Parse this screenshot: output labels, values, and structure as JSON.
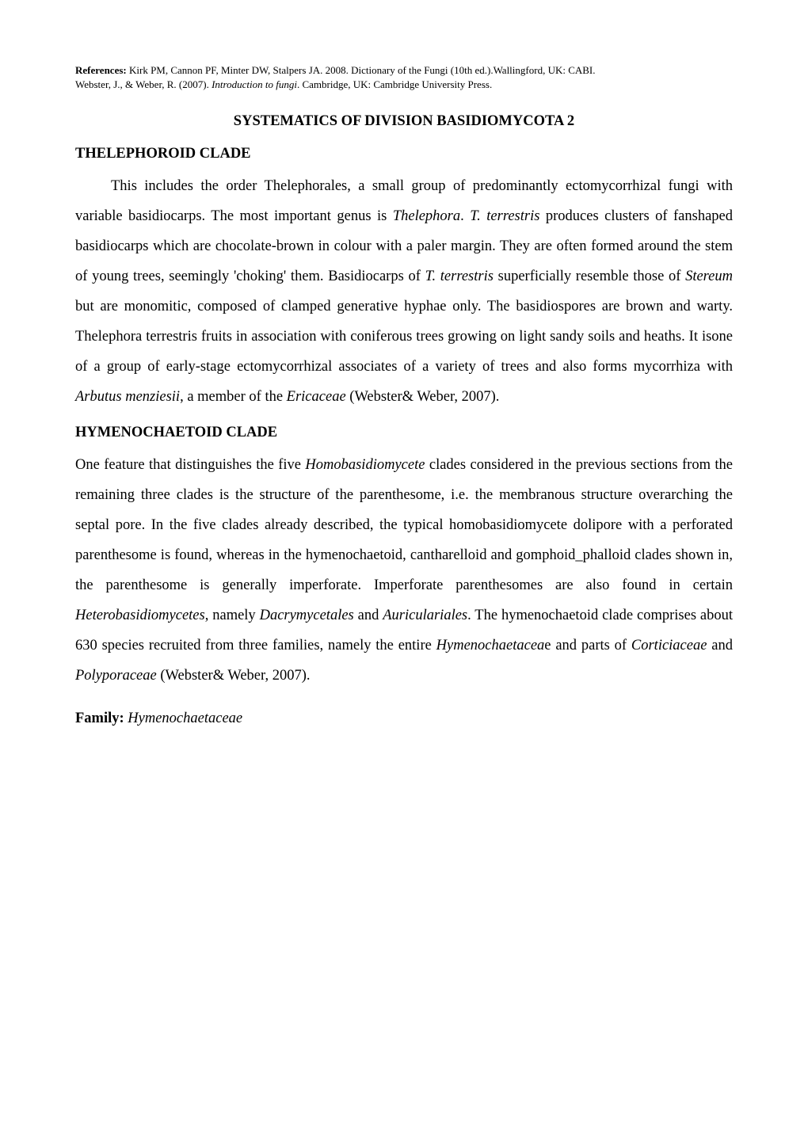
{
  "references": {
    "line1_prefix": "References: ",
    "line1_text": "Kirk PM, Cannon PF, Minter DW, Stalpers JA. 2008. Dictionary of the Fungi (10th ed.).Wallingford, UK: CABI.",
    "line2_prefix": "Webster, J., & Weber, R. (2007). ",
    "line2_italic": "Introduction to fungi",
    "line2_suffix": ". Cambridge, UK: Cambridge University Press."
  },
  "title": "SYSTEMATICS OF DIVISION BASIDIOMYCOTA 2",
  "section1": {
    "heading": "THELEPHOROID CLADE",
    "para1": {
      "t1": "This includes the order Thelephorales, a small group of predominantly ectomycorrhizal fungi with variable basidiocarps. The most important genus is ",
      "i1": "Thelephora",
      "t2": ". ",
      "i2": "T. terrestris",
      "t3": " produces clusters of fanshaped basidiocarps which are chocolate-brown in colour with a paler margin. They are often formed around the stem of young trees, seemingly 'choking' them. Basidiocarps of ",
      "i3": "T. terrestris",
      "t4": " superficially resemble those of ",
      "i4": "Stereum",
      "t5": " but are monomitic, composed of clamped generative hyphae only. The basidiospores are brown and warty. Thelephora terrestris fruits in association with coniferous trees growing on light sandy soils and heaths. It isone of a group of early-stage ectomycorrhizal associates of a variety of trees and also forms mycorrhiza with ",
      "i5": "Arbutus menziesii",
      "t6": ", a member of the ",
      "i6": "Ericaceae",
      "t7": " (Webster& Weber, 2007)."
    }
  },
  "section2": {
    "heading": "HYMENOCHAETOID CLADE",
    "para1": {
      "t1": "One feature that distinguishes the five ",
      "i1": "Homobasidiomycete",
      "t2": " clades considered in the previous sections from the remaining three clades is the structure of the parenthesome, i.e. the membranous structure overarching the septal pore. In the five clades already described, the typical homobasidiomycete dolipore with a perforated parenthesome is found, whereas in the hymenochaetoid, cantharelloid and gomphoid_phalloid clades shown in, the parenthesome is generally imperforate. Imperforate parenthesomes are also found in certain ",
      "i2": "Heterobasidiomycetes",
      "t3": ", namely ",
      "i3": "Dacrymycetales",
      "t4": " and ",
      "i4": "Auriculariales",
      "t5": ".  The hymenochaetoid clade comprises about 630 species recruited from three families, namely the entire ",
      "i5": "Hymenochaetacea",
      "t6": "e and parts of ",
      "i6": "Corticiaceae",
      "t7": " and ",
      "i7": "Polyporaceae",
      "t8": " (Webster& Weber, 2007)."
    },
    "family_label": "Family: ",
    "family_name": "Hymenochaetaceae"
  }
}
